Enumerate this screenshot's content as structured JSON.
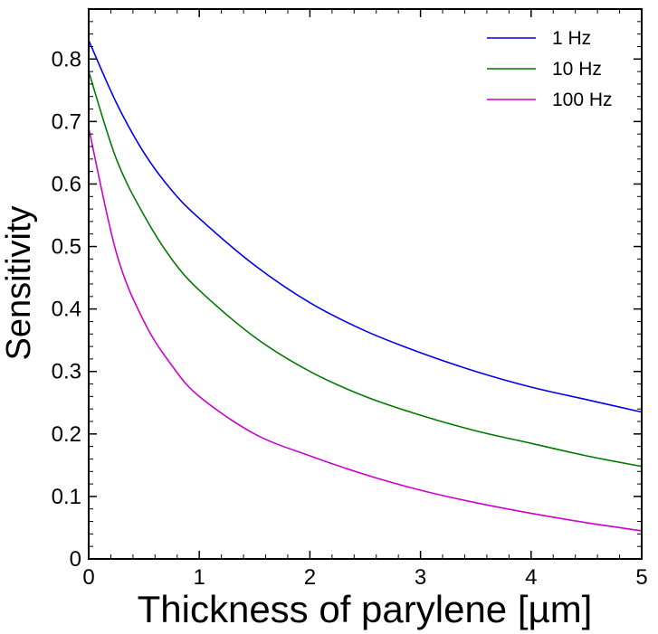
{
  "chart_data": {
    "type": "line",
    "title": "",
    "xlabel": "Thickness of parylene [µm]",
    "ylabel": "Sensitivity",
    "xlim": [
      0,
      5
    ],
    "ylim": [
      0,
      0.88
    ],
    "x_ticks": [
      0,
      1,
      2,
      3,
      4,
      5
    ],
    "x_tick_labels": [
      "0",
      "1",
      "2",
      "3",
      "4",
      "5"
    ],
    "y_ticks": [
      0,
      0.1,
      0.2,
      0.3,
      0.4,
      0.5,
      0.6,
      0.7,
      0.8
    ],
    "y_tick_labels": [
      "0",
      "0.1",
      "0.2",
      "0.3",
      "0.4",
      "0.5",
      "0.6",
      "0.7",
      "0.8"
    ],
    "grid": false,
    "legend_position": "top-right",
    "x": [
      0,
      0.25,
      0.5,
      0.75,
      1,
      1.5,
      2,
      2.5,
      3,
      3.5,
      4,
      4.5,
      5
    ],
    "series": [
      {
        "name": "1 Hz",
        "color": "#0000ee",
        "values": [
          0.83,
          0.73,
          0.65,
          0.59,
          0.545,
          0.47,
          0.41,
          0.365,
          0.33,
          0.3,
          0.275,
          0.255,
          0.235
        ]
      },
      {
        "name": "10 Hz",
        "color": "#007a00",
        "values": [
          0.78,
          0.64,
          0.55,
          0.48,
          0.43,
          0.355,
          0.3,
          0.26,
          0.23,
          0.205,
          0.185,
          0.165,
          0.148
        ]
      },
      {
        "name": "100 Hz",
        "color": "#cc00cc",
        "values": [
          0.69,
          0.49,
          0.38,
          0.31,
          0.26,
          0.2,
          0.165,
          0.135,
          0.11,
          0.09,
          0.073,
          0.058,
          0.045
        ]
      }
    ]
  }
}
